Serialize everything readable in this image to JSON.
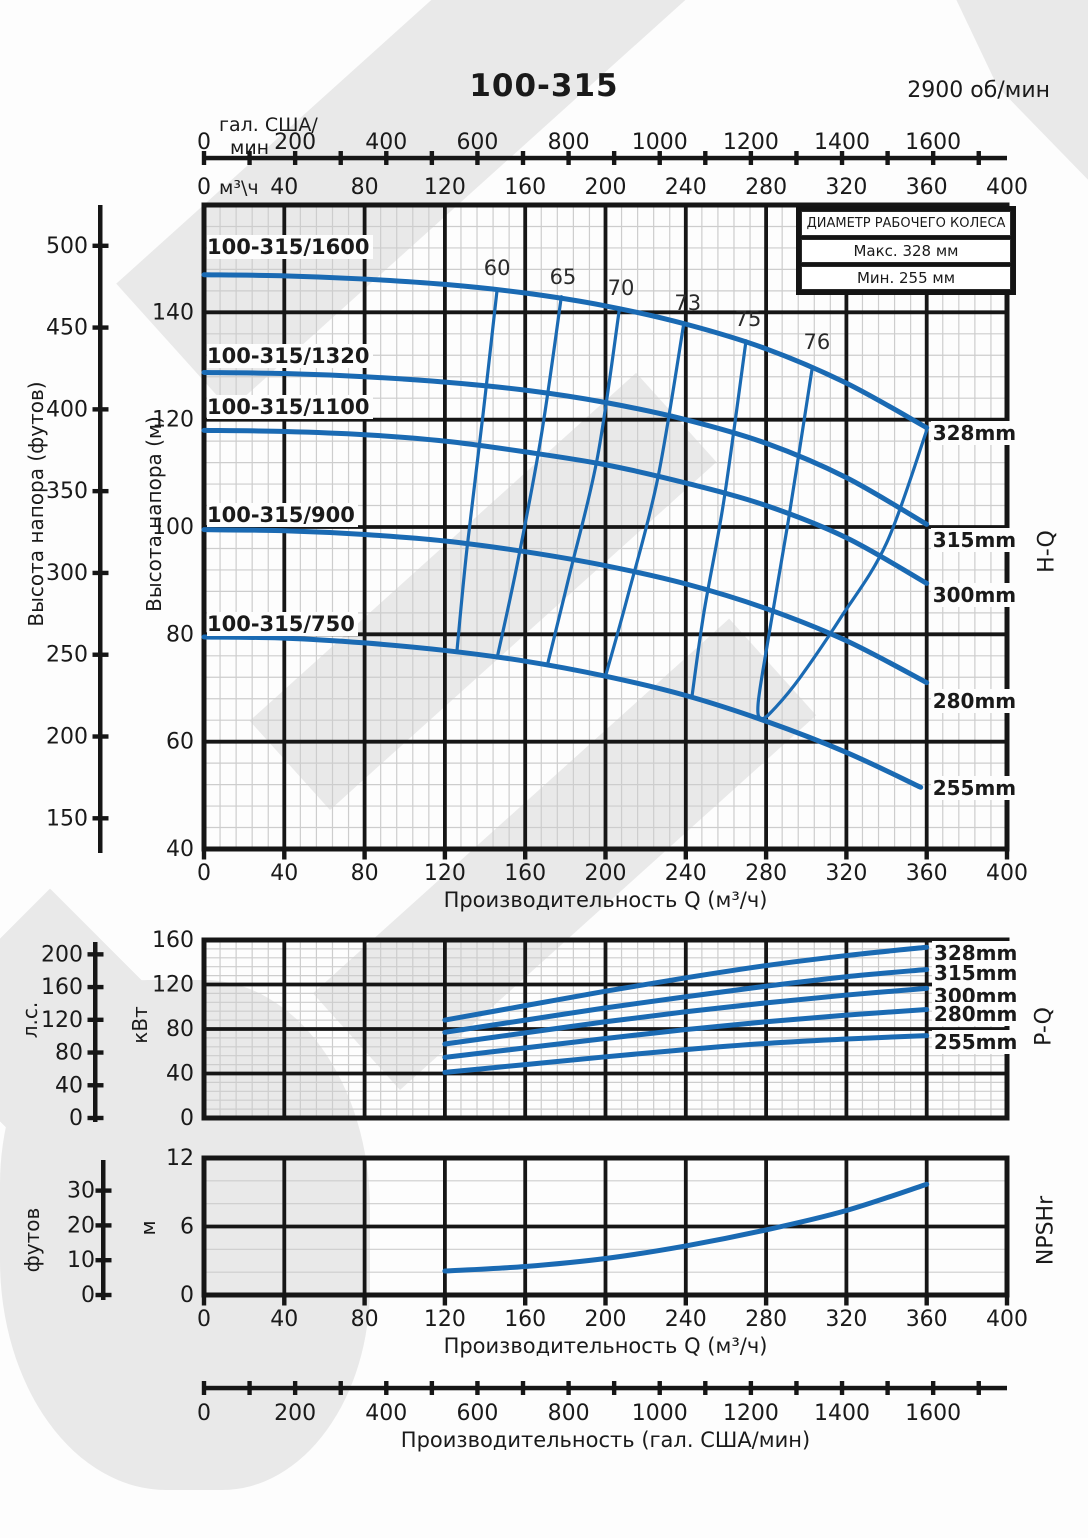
{
  "header": {
    "title": "100-315",
    "speed": "2900 об/мин"
  },
  "legend": {
    "title": "ДИАМЕТР РАБОЧЕГО КОЛЕСА",
    "max": "Макс. 328 мм",
    "min": "Мин. 255 мм"
  },
  "watermark_text": "REM",
  "colors": {
    "curve": "#1a6ab3",
    "grid_major": "#161616",
    "grid_minor": "#cdcdcd",
    "text": "#1a1a1a",
    "watermark": "#e9e9e9"
  },
  "section_labels": {
    "hq": "H-Q",
    "pq": "P-Q",
    "npsh": "NPSHr"
  },
  "axes": {
    "gal_top": {
      "unit_line1": "гал. США/",
      "unit_line2": "мин",
      "labels": [
        0,
        200,
        400,
        600,
        800,
        1000,
        1200,
        1400,
        1600
      ],
      "minor_step": 100,
      "axis_max": 1762
    },
    "m3h_top": {
      "unit": "м³\\ч",
      "labels": [
        0,
        40,
        80,
        120,
        160,
        200,
        240,
        280,
        320,
        360,
        400
      ]
    },
    "hq_left_ft": {
      "title": "Высота напора (футов)",
      "ticks": [
        500,
        450,
        400,
        350,
        300,
        250,
        200,
        150
      ]
    },
    "hq_left_m": {
      "title": "Высота напора (м)",
      "ticks": [
        140,
        120,
        100,
        80,
        60,
        40
      ]
    },
    "hq_bottom": {
      "title": "Производительность Q (м³/ч)",
      "labels": [
        0,
        40,
        80,
        120,
        160,
        200,
        240,
        280,
        320,
        360,
        400
      ]
    },
    "pq_left_hp": {
      "title": "л.с.",
      "ticks": [
        200,
        160,
        120,
        80,
        40,
        0
      ]
    },
    "pq_left_kw": {
      "title": "кВт",
      "ticks": [
        160,
        120,
        80,
        40,
        0
      ]
    },
    "npsh_left_ft": {
      "title": "футов",
      "ticks": [
        30,
        20,
        10,
        0
      ]
    },
    "npsh_left_m": {
      "title": "м",
      "ticks": [
        12,
        6,
        0
      ]
    },
    "npsh_bottom": {
      "title": "Производительность Q (м³/ч)",
      "labels": [
        0,
        40,
        80,
        120,
        160,
        200,
        240,
        280,
        320,
        360,
        400
      ]
    },
    "gal_bottom": {
      "title": "Производительность (гал. США/мин)",
      "labels": [
        0,
        200,
        400,
        600,
        800,
        1000,
        1200,
        1400,
        1600
      ],
      "minor_step": 100,
      "axis_max": 1762
    }
  },
  "chart_data": [
    {
      "id": "hq",
      "type": "line",
      "title": "H-Q",
      "x": {
        "label": "Производительность Q (м³/ч)",
        "min": 0,
        "max": 400,
        "major": 40,
        "minor": 8
      },
      "y": {
        "label": "Высота напора (м)",
        "min": 40,
        "max": 160,
        "major": 20,
        "minor": 4
      },
      "series": [
        {
          "name": "328mm",
          "model": "100-315/1600",
          "points": [
            [
              0,
              147
            ],
            [
              40,
              146.8
            ],
            [
              80,
              146.2
            ],
            [
              120,
              145.2
            ],
            [
              160,
              143.6
            ],
            [
              200,
              141.2
            ],
            [
              240,
              137.8
            ],
            [
              280,
              133.2
            ],
            [
              320,
              126.8
            ],
            [
              360,
              118.5
            ]
          ],
          "model_label_at": [
            1.5,
            152.2
          ],
          "dia_label_at": [
            362,
            117.6
          ]
        },
        {
          "name": "315mm",
          "model": "100-315/1320",
          "points": [
            [
              0,
              128.8
            ],
            [
              40,
              128.6
            ],
            [
              80,
              128
            ],
            [
              120,
              127
            ],
            [
              160,
              125.5
            ],
            [
              200,
              123.2
            ],
            [
              240,
              120
            ],
            [
              280,
              115.6
            ],
            [
              320,
              109.2
            ],
            [
              360,
              100.5
            ]
          ],
          "model_label_at": [
            1.5,
            131.9
          ],
          "dia_label_at": [
            362,
            97.6
          ]
        },
        {
          "name": "300mm",
          "model": "100-315/1100",
          "points": [
            [
              0,
              118
            ],
            [
              40,
              117.8
            ],
            [
              80,
              117.2
            ],
            [
              120,
              116
            ],
            [
              160,
              114
            ],
            [
              200,
              111.6
            ],
            [
              240,
              108.2
            ],
            [
              280,
              104
            ],
            [
              320,
              98
            ],
            [
              360,
              89.5
            ]
          ],
          "model_label_at": [
            1.5,
            122.4
          ],
          "dia_label_at": [
            362,
            87.4
          ]
        },
        {
          "name": "280mm",
          "model": "100-315/900",
          "points": [
            [
              0,
              99.5
            ],
            [
              40,
              99.3
            ],
            [
              80,
              98.6
            ],
            [
              120,
              97.4
            ],
            [
              160,
              95.4
            ],
            [
              200,
              92.8
            ],
            [
              240,
              89.4
            ],
            [
              280,
              84.8
            ],
            [
              320,
              78.8
            ],
            [
              360,
              71
            ]
          ],
          "model_label_at": [
            1.5,
            102.2
          ],
          "dia_label_at": [
            362,
            67.5
          ]
        },
        {
          "name": "255mm",
          "model": "100-315/750",
          "points": [
            [
              0,
              79.5
            ],
            [
              40,
              79.3
            ],
            [
              80,
              78.4
            ],
            [
              120,
              77
            ],
            [
              160,
              75
            ],
            [
              200,
              72.2
            ],
            [
              240,
              68.6
            ],
            [
              280,
              63.8
            ],
            [
              320,
              58
            ],
            [
              357,
              51.5
            ]
          ],
          "model_label_at": [
            1.5,
            81.9
          ],
          "dia_label_at": [
            362,
            51.3
          ]
        }
      ],
      "efficiency": [
        {
          "value": 60,
          "points": [
            [
              146,
              144.2
            ],
            [
              139,
              121
            ],
            [
              131,
              96
            ],
            [
              126,
              76.9
            ]
          ],
          "label_at": [
            146,
            148.3
          ]
        },
        {
          "value": 65,
          "points": [
            [
              178,
              142.9
            ],
            [
              168,
              117
            ],
            [
              156,
              93
            ],
            [
              146,
              75.6
            ]
          ],
          "label_at": [
            178.8,
            146.6
          ]
        },
        {
          "value": 70,
          "points": [
            [
              207,
              140.8
            ],
            [
              196,
              113
            ],
            [
              182,
              91
            ],
            [
              171,
              74.2
            ]
          ],
          "label_at": [
            207.7,
            144.5
          ]
        },
        {
          "value": 73,
          "points": [
            [
              239,
              137.9
            ],
            [
              226,
              109
            ],
            [
              211,
              87
            ],
            [
              200,
              72.2
            ]
          ],
          "label_at": [
            241,
            141.7
          ]
        },
        {
          "value": 75,
          "points": [
            [
              270,
              134.7
            ],
            [
              259,
              105
            ],
            [
              249,
              84
            ],
            [
              243,
              68.2
            ]
          ],
          "label_at": [
            271,
            138.7
          ]
        },
        {
          "value": 76,
          "points": [
            [
              303,
              129.7
            ],
            [
              291,
              101
            ],
            [
              281,
              79
            ],
            [
              276,
              67
            ],
            [
              278,
              64.3
            ],
            [
              285,
              66.5
            ],
            [
              297,
              72
            ],
            [
              317,
              83
            ],
            [
              340,
              97
            ],
            [
              360,
              118
            ]
          ],
          "label_at": [
            305.3,
            134.4
          ]
        }
      ]
    },
    {
      "id": "pq",
      "type": "line",
      "title": "P-Q",
      "x": {
        "label": "Производительность Q (м³/ч)",
        "min": 0,
        "max": 400,
        "major": 40,
        "minor": 8
      },
      "y": {
        "label": "кВт",
        "min": 0,
        "max": 160,
        "major": 40,
        "minor": 8
      },
      "series": [
        {
          "name": "328mm",
          "points": [
            [
              120,
              88
            ],
            [
              160,
              101
            ],
            [
              200,
              114
            ],
            [
              240,
              126
            ],
            [
              280,
              137
            ],
            [
              320,
              146
            ],
            [
              360,
              153.5
            ]
          ],
          "dia_label_at": [
            362.6,
            148.3
          ]
        },
        {
          "name": "315mm",
          "points": [
            [
              120,
              77
            ],
            [
              160,
              88
            ],
            [
              200,
              99
            ],
            [
              240,
              109
            ],
            [
              280,
              118.5
            ],
            [
              320,
              127
            ],
            [
              360,
              133.5
            ]
          ],
          "dia_label_at": [
            362.6,
            130.3
          ]
        },
        {
          "name": "300mm",
          "points": [
            [
              120,
              66.5
            ],
            [
              160,
              76.5
            ],
            [
              200,
              86.5
            ],
            [
              240,
              95.5
            ],
            [
              280,
              103.5
            ],
            [
              320,
              110.5
            ],
            [
              360,
              116.5
            ]
          ],
          "dia_label_at": [
            362.6,
            109.7
          ]
        },
        {
          "name": "280mm",
          "points": [
            [
              120,
              54.5
            ],
            [
              160,
              63
            ],
            [
              200,
              71.5
            ],
            [
              240,
              79.5
            ],
            [
              280,
              86.5
            ],
            [
              320,
              92.5
            ],
            [
              360,
              97.5
            ]
          ],
          "dia_label_at": [
            362.6,
            93.5
          ]
        },
        {
          "name": "255mm",
          "points": [
            [
              120,
              41
            ],
            [
              160,
              48
            ],
            [
              200,
              55
            ],
            [
              240,
              61.5
            ],
            [
              280,
              67
            ],
            [
              320,
              71
            ],
            [
              360,
              74
            ]
          ],
          "dia_label_at": [
            362.6,
            68.3
          ]
        }
      ]
    },
    {
      "id": "npsh",
      "type": "line",
      "title": "NPSHr",
      "x": {
        "label": "Производительность Q (м³/ч)",
        "min": 0,
        "max": 400,
        "major": 40
      },
      "y": {
        "label": "м",
        "min": 0,
        "max": 12,
        "major": 6,
        "minor": 2
      },
      "series": [
        {
          "name": "NPSHr",
          "points": [
            [
              120,
              2.1
            ],
            [
              160,
              2.5
            ],
            [
              200,
              3.2
            ],
            [
              240,
              4.3
            ],
            [
              280,
              5.7
            ],
            [
              320,
              7.4
            ],
            [
              360,
              9.7
            ]
          ]
        }
      ]
    }
  ]
}
